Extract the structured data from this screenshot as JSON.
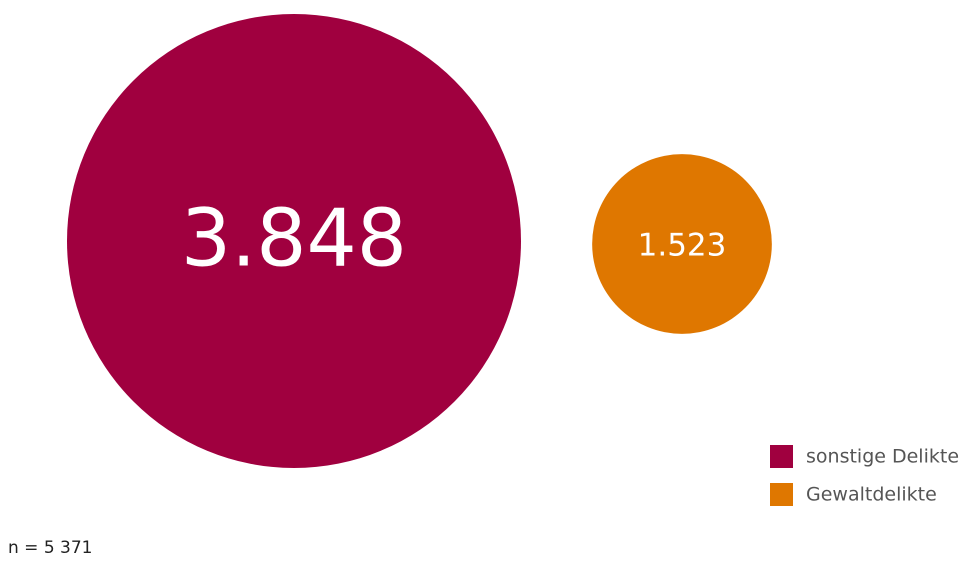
{
  "chart_data": {
    "type": "bubble",
    "series": [
      {
        "name": "sonstige Delikte",
        "color": "#a0003f",
        "values": [
          3848
        ],
        "value_labels": [
          "3.848"
        ]
      },
      {
        "name": "Gewaltdelikte",
        "color": "#df7700",
        "values": [
          1523
        ],
        "value_labels": [
          "1.523"
        ]
      }
    ],
    "note": "n = 5 371"
  }
}
